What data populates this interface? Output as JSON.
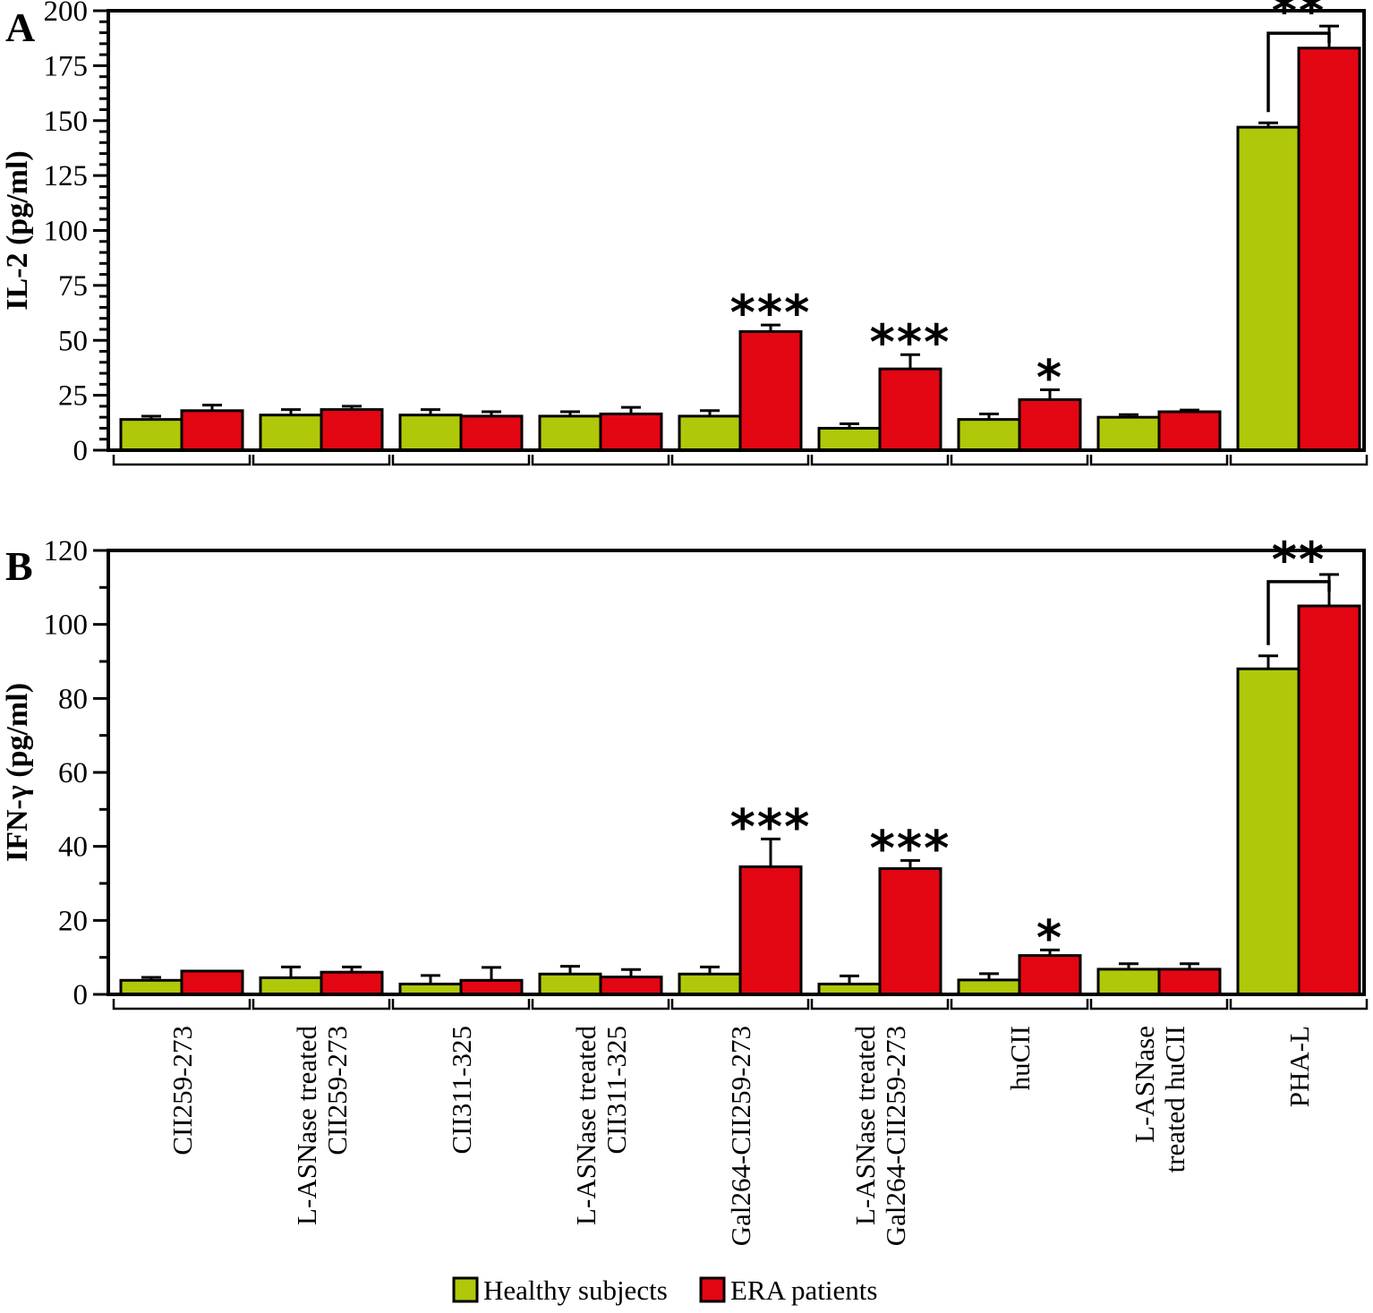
{
  "legend": {
    "items": [
      {
        "label": "Healthy subjects",
        "color": "#b0c80a"
      },
      {
        "label": "ERA patients",
        "color": "#e30613"
      }
    ]
  },
  "colors": {
    "healthy": "#b0c80a",
    "era": "#e30613",
    "outline": "#000000",
    "background": "#ffffff"
  },
  "x_axis": {
    "category_lines": [
      [
        "CII259-273"
      ],
      [
        "L-ASNase treated",
        "CII259-273"
      ],
      [
        "CII311-325"
      ],
      [
        "L-ASNase treated",
        "CII311-325"
      ],
      [
        "Gal264-CII259-273"
      ],
      [
        "L-ASNase treated",
        "Gal264-CII259-273"
      ],
      [
        "huCII"
      ],
      [
        "L-ASNase",
        "treated huCII"
      ],
      [
        "PHA-L"
      ]
    ]
  },
  "chart_data": [
    {
      "type": "bar",
      "panel": "A",
      "ylabel": "IL-2 (pg/ml)",
      "xlabel": "",
      "ylim": [
        0,
        200
      ],
      "yticks": [
        0,
        25,
        50,
        75,
        100,
        125,
        150,
        175,
        200
      ],
      "ytick_minor_step": 5,
      "grid": false,
      "legend_position": "bottom",
      "categories": [
        "CII259-273",
        "L-ASNase treated CII259-273",
        "CII311-325",
        "L-ASNase treated CII311-325",
        "Gal264-CII259-273",
        "L-ASNase treated Gal264-CII259-273",
        "huCII",
        "L-ASNase treated huCII",
        "PHA-L"
      ],
      "series": [
        {
          "name": "Healthy subjects",
          "color": "#b0c80a",
          "values": [
            14,
            16,
            16,
            15.5,
            15.5,
            10,
            14,
            15,
            147
          ],
          "errors": [
            1.5,
            2.5,
            2.5,
            2,
            2.5,
            2,
            2.5,
            1.2,
            2
          ]
        },
        {
          "name": "ERA patients",
          "color": "#e30613",
          "values": [
            18,
            18.5,
            15.5,
            16.5,
            54,
            37,
            23,
            17.5,
            183
          ],
          "errors": [
            2.5,
            1.5,
            2,
            3,
            3,
            6.5,
            4.5,
            0.8,
            10
          ]
        }
      ],
      "significance": [
        "",
        "",
        "",
        "",
        "***",
        "***",
        "*",
        "",
        "**"
      ],
      "significance_bracket_category": "PHA-L"
    },
    {
      "type": "bar",
      "panel": "B",
      "ylabel": "IFN-γ (pg/ml)",
      "xlabel": "",
      "ylim": [
        0,
        120
      ],
      "yticks": [
        0,
        20,
        40,
        60,
        80,
        100,
        120
      ],
      "ytick_minor_step": 10,
      "grid": false,
      "legend_position": "bottom",
      "categories": [
        "CII259-273",
        "L-ASNase treated CII259-273",
        "CII311-325",
        "L-ASNase treated CII311-325",
        "Gal264-CII259-273",
        "L-ASNase treated Gal264-CII259-273",
        "huCII",
        "L-ASNase treated huCII",
        "PHA-L"
      ],
      "series": [
        {
          "name": "Healthy subjects",
          "color": "#b0c80a",
          "values": [
            3.8,
            4.5,
            2.8,
            5.5,
            5.5,
            2.8,
            3.9,
            6.8,
            88
          ],
          "errors": [
            0.8,
            2.9,
            2.3,
            2.1,
            1.9,
            2.2,
            1.7,
            1.5,
            3.5
          ]
        },
        {
          "name": "ERA patients",
          "color": "#e30613",
          "values": [
            6.3,
            6,
            3.8,
            4.7,
            34.5,
            34,
            10.5,
            6.8,
            105
          ],
          "errors": [
            0,
            1.4,
            3.5,
            2,
            7.5,
            2.2,
            1.5,
            1.5,
            8.5
          ]
        }
      ],
      "significance": [
        "",
        "",
        "",
        "",
        "***",
        "***",
        "*",
        "",
        "**"
      ],
      "significance_bracket_category": "PHA-L"
    }
  ]
}
